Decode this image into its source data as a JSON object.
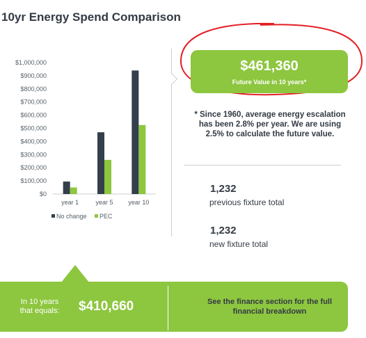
{
  "title": "10yr Energy Spend Comparison",
  "future_value": {
    "amount": "$461,360",
    "caption": "Future Value in 10 years*",
    "box_color": "#8dc63f",
    "highlight_color": "#e31e24"
  },
  "note": "* Since 1960, average energy escalation has been 2.8% per year. We are using 2.5% to calculate the future value.",
  "stats": [
    {
      "value": "1,232",
      "label": "previous fixture total"
    },
    {
      "value": "1,232",
      "label": "new fixture total"
    }
  ],
  "banner": {
    "lead_text": "In 10 years that equals:",
    "amount": "$410,660",
    "finance_text": "See the finance section for the full financial breakdown",
    "color": "#8dc63f"
  },
  "chart_data": {
    "type": "bar",
    "categories": [
      "year 1",
      "year 5",
      "year 10"
    ],
    "series": [
      {
        "name": "No change",
        "values": [
          95000,
          470000,
          940000
        ],
        "color": "#333f4c"
      },
      {
        "name": "PEC",
        "values": [
          50000,
          260000,
          525000
        ],
        "color": "#8dc63f"
      }
    ],
    "ylim": [
      0,
      1000000
    ],
    "y_ticks": [
      "$0",
      "$100,000",
      "$200,000",
      "$300,000",
      "$400,000",
      "$500,000",
      "$600,000",
      "$700,000",
      "$800,000",
      "$900,000",
      "$1,000,000"
    ],
    "grid": false,
    "legend": "bottom"
  }
}
